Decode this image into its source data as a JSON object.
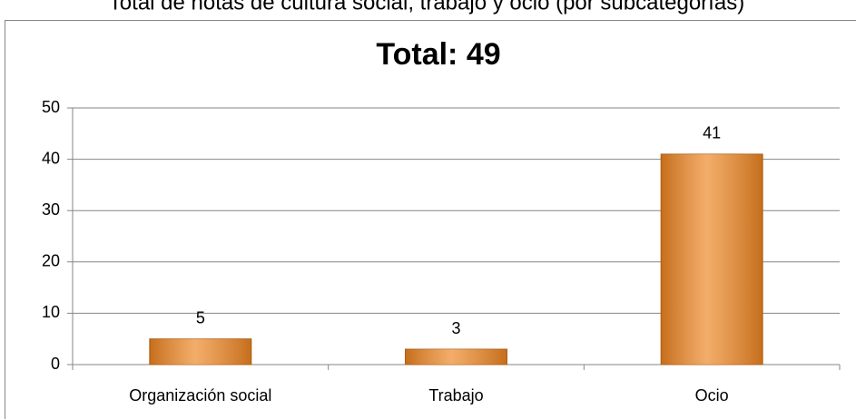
{
  "header": {
    "title": "Total de notas de cultura social, trabajo y ocio (por subcategorías)"
  },
  "chart_data": {
    "type": "bar",
    "title": "Total: 49",
    "categories": [
      "Organización social",
      "Trabajo",
      "Ocio"
    ],
    "values": [
      5,
      3,
      41
    ],
    "color": "#ee8a2a",
    "ylim": [
      0,
      50
    ],
    "yticks": [
      0,
      10,
      20,
      30,
      40,
      50
    ],
    "grid": true
  }
}
